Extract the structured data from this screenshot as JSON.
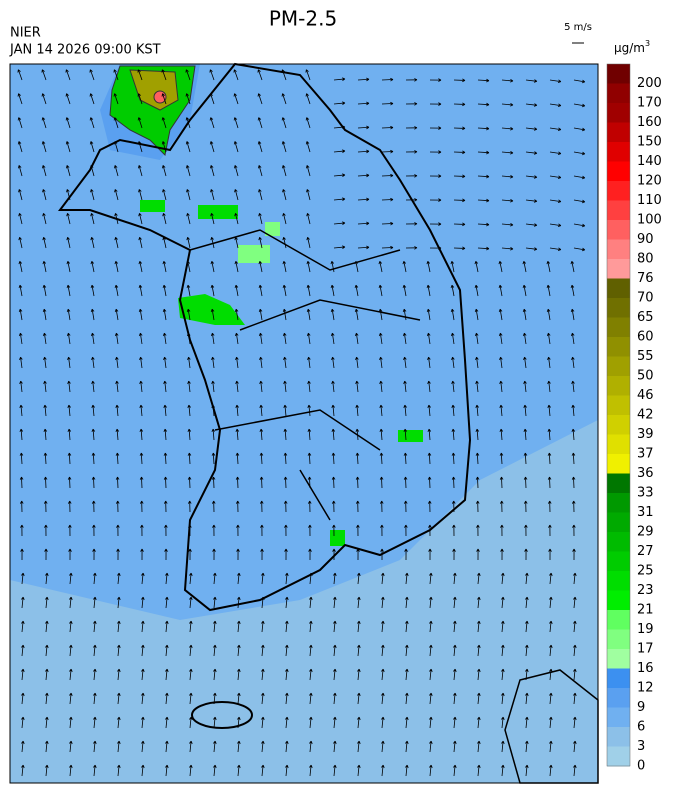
{
  "header": {
    "title": "PM-2.5",
    "agency": "NIER",
    "datetime": "JAN 14 2026 09:00 KST",
    "wind_scale": "5 m/s"
  },
  "colorbar": {
    "unit": "μg/m",
    "unit_sup": "3",
    "labels": [
      "200",
      "170",
      "160",
      "150",
      "140",
      "120",
      "110",
      "100",
      "90",
      "80",
      "76",
      "70",
      "65",
      "60",
      "55",
      "50",
      "46",
      "42",
      "39",
      "37",
      "36",
      "33",
      "31",
      "29",
      "27",
      "25",
      "23",
      "21",
      "19",
      "17",
      "16",
      "12",
      "9",
      "6",
      "3",
      "0"
    ],
    "colors": [
      "#700000",
      "#900000",
      "#a00000",
      "#c00000",
      "#e00000",
      "#ff0000",
      "#ff2020",
      "#ff4040",
      "#ff6060",
      "#ff8080",
      "#ff9a9a",
      "#606000",
      "#707000",
      "#808000",
      "#909000",
      "#a0a000",
      "#b0b000",
      "#c0c000",
      "#d0d000",
      "#e0e000",
      "#f0f000",
      "#007700",
      "#009900",
      "#00aa00",
      "#00bb00",
      "#00cc00",
      "#00dd00",
      "#00ee00",
      "#60ff60",
      "#80ff80",
      "#a0ffa0",
      "#3c90f0",
      "#5aa0f0",
      "#70b0f0",
      "#8cc0e8",
      "#a0d0e8"
    ]
  }
}
